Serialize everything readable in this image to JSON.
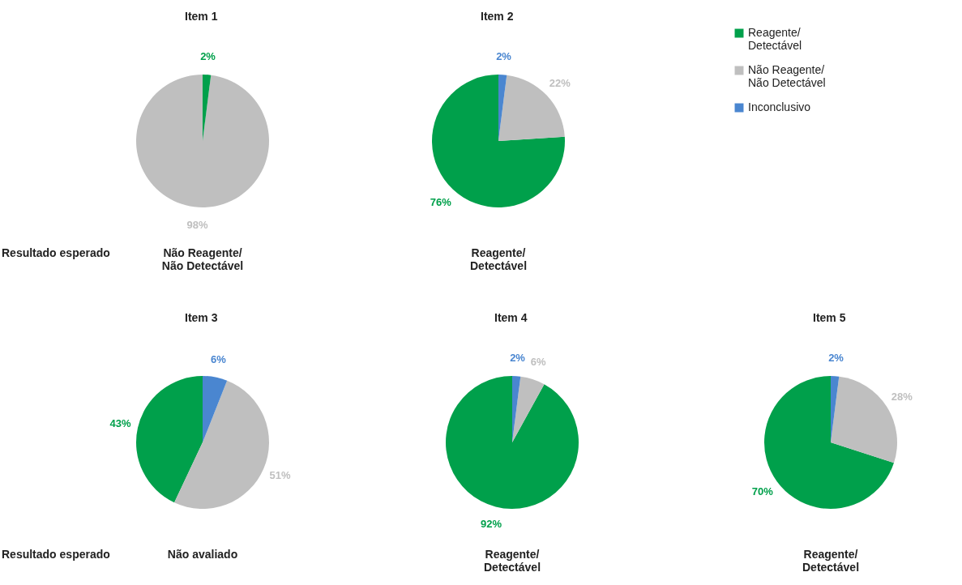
{
  "chart_data": [
    {
      "type": "pie",
      "title": "Item 1",
      "categories": [
        null,
        null
      ],
      "values": [
        98,
        2
      ],
      "colors": [
        "#bfbfbf",
        "#00a04b"
      ],
      "value_labels": [
        "98%",
        "2%"
      ],
      "annotations": [
        "Resultado esperado",
        "Não Reagente/\nNão Detectável"
      ]
    },
    {
      "type": "pie",
      "title": "Item 2",
      "categories": [
        "Reagente/\nDetectável",
        "Não Reagente/\nNão Detectável",
        "Inconclusivo"
      ],
      "values": [
        76,
        22,
        2
      ],
      "colors": [
        "#00a04b",
        "#bfbfbf",
        "#4a86d0"
      ],
      "value_labels": [
        "76%",
        "22%",
        "2%"
      ],
      "legend": "right",
      "annotations": [
        "Reagente/\nDetectável"
      ]
    },
    {
      "type": "pie",
      "title": "Item 3",
      "categories": [
        null,
        null,
        null
      ],
      "values": [
        43,
        51,
        6
      ],
      "colors": [
        "#00a04b",
        "#bfbfbf",
        "#4a86d0"
      ],
      "value_labels": [
        "43%",
        "51%",
        "6%"
      ],
      "annotations": [
        "Resultado esperado",
        "Não avaliado"
      ]
    },
    {
      "type": "pie",
      "title": "Item 4",
      "categories": [
        null,
        null,
        null
      ],
      "values": [
        92,
        6,
        2
      ],
      "colors": [
        "#00a04b",
        "#bfbfbf",
        "#4a86d0"
      ],
      "value_labels": [
        "92%",
        "6%",
        "2%"
      ],
      "annotations": [
        "Reagente/\nDetectável"
      ]
    },
    {
      "type": "pie",
      "title": "Item 5",
      "categories": [
        null,
        null,
        null
      ],
      "values": [
        70,
        28,
        2
      ],
      "colors": [
        "#00a04b",
        "#bfbfbf",
        "#4a86d0"
      ],
      "value_labels": [
        "70%",
        "28%",
        "2%"
      ],
      "annotations": [
        "Reagente/\nDetectável"
      ]
    }
  ]
}
